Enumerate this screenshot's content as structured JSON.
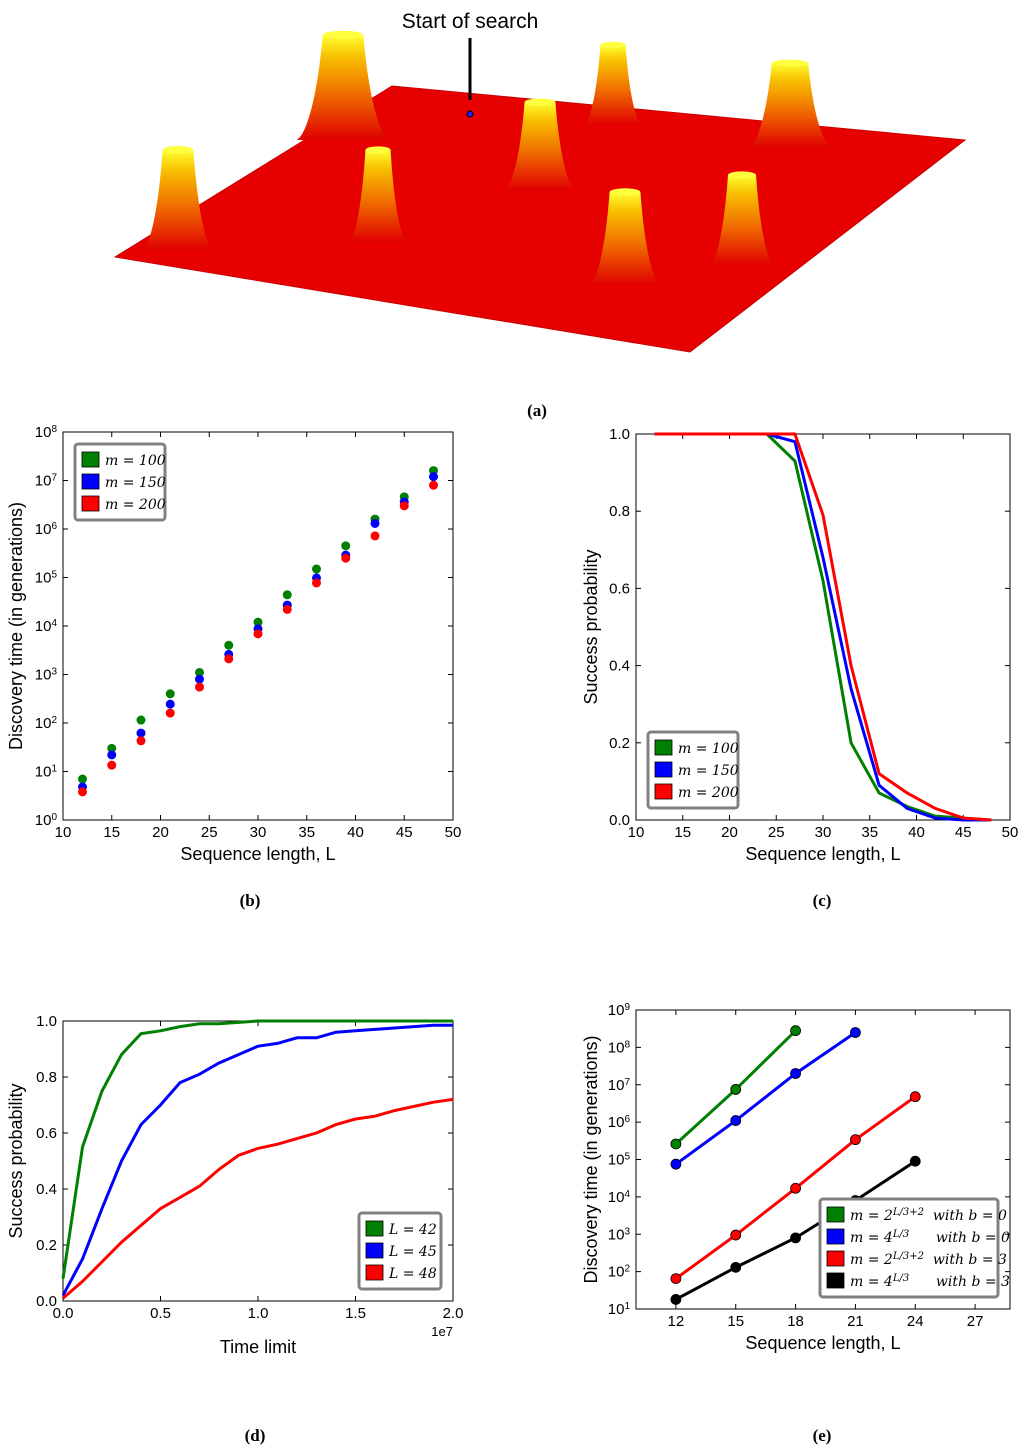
{
  "landscape": {
    "annotation": "Start of search",
    "panel_label": "(a)"
  },
  "chart_data": [
    {
      "type": "scatter",
      "panel_label": "(b)",
      "xlabel": "Sequence length, L",
      "ylabel": "Discovery time (in generations)",
      "log_y": true,
      "legend": "upper left",
      "x": [
        12,
        15,
        18,
        21,
        24,
        27,
        30,
        33,
        36,
        39,
        42,
        45,
        48
      ],
      "xlim": [
        10,
        50
      ],
      "xticks": [
        10,
        15,
        20,
        25,
        30,
        35,
        40,
        45,
        50
      ],
      "ylim": [
        1,
        100000000
      ],
      "yticks": [
        {
          "value": 1,
          "label": "10^{0}"
        },
        {
          "value": 10,
          "label": "10^{1}"
        },
        {
          "value": 100,
          "label": "10^{2}"
        },
        {
          "value": 1000,
          "label": "10^{3}"
        },
        {
          "value": 10000,
          "label": "10^{4}"
        },
        {
          "value": 100000,
          "label": "10^{5}"
        },
        {
          "value": 1000000,
          "label": "10^{6}"
        },
        {
          "value": 10000000,
          "label": "10^{7}"
        },
        {
          "value": 100000000,
          "label": "10^{8}"
        }
      ],
      "series": [
        {
          "name": "m = 100",
          "color": "#008000",
          "values": [
            7,
            30,
            115,
            400,
            1100,
            4000,
            12000,
            44000,
            150000,
            450000,
            1600000,
            4600000,
            16000000
          ]
        },
        {
          "name": "m = 150",
          "color": "#0000ff",
          "values": [
            4.8,
            22,
            62,
            245,
            800,
            2600,
            8700,
            27000,
            98000,
            290000,
            1300000,
            3600000,
            12000000
          ]
        },
        {
          "name": "m = 200",
          "color": "#ff0000",
          "values": [
            3.8,
            13.5,
            43,
            160,
            550,
            2100,
            6900,
            22000,
            77000,
            250000,
            720000,
            3000000,
            8000000
          ]
        }
      ]
    },
    {
      "type": "line",
      "panel_label": "(c)",
      "xlabel": "Sequence length, L",
      "ylabel": "Success probability",
      "legend": "lower left",
      "x": [
        12,
        15,
        18,
        21,
        24,
        27,
        30,
        33,
        36,
        39,
        42,
        45,
        48
      ],
      "xlim": [
        10,
        50
      ],
      "xticks": [
        10,
        15,
        20,
        25,
        30,
        35,
        40,
        45,
        50
      ],
      "ylim": [
        0,
        1
      ],
      "yticks": [
        {
          "value": 0,
          "label": "0.0"
        },
        {
          "value": 0.2,
          "label": "0.2"
        },
        {
          "value": 0.4,
          "label": "0.4"
        },
        {
          "value": 0.6,
          "label": "0.6"
        },
        {
          "value": 0.8,
          "label": "0.8"
        },
        {
          "value": 1,
          "label": "1.0"
        }
      ],
      "series": [
        {
          "name": "m = 100",
          "color": "#008000",
          "values": [
            1,
            1,
            1,
            1,
            1,
            0.93,
            0.62,
            0.2,
            0.07,
            0.035,
            0.01,
            0.005,
            0
          ]
        },
        {
          "name": "m = 150",
          "color": "#0000ff",
          "values": [
            1,
            1,
            1,
            1,
            1,
            0.98,
            0.68,
            0.34,
            0.09,
            0.03,
            0.005,
            0,
            0
          ]
        },
        {
          "name": "m = 200",
          "color": "#ff0000",
          "values": [
            1,
            1,
            1,
            1,
            1,
            1,
            0.79,
            0.4,
            0.12,
            0.07,
            0.03,
            0.005,
            0
          ]
        }
      ]
    },
    {
      "type": "line",
      "panel_label": "(d)",
      "xlabel": "Time limit",
      "ylabel": "Success probability",
      "x_offset_label": "1e7",
      "legend": "lower right",
      "x": [
        0,
        0.1,
        0.2,
        0.3,
        0.4,
        0.5,
        0.6,
        0.7,
        0.8,
        0.9,
        1,
        1.1,
        1.2,
        1.3,
        1.4,
        1.5,
        1.6,
        1.7,
        1.8,
        1.9,
        2
      ],
      "xlim": [
        0,
        2
      ],
      "xticks": [
        {
          "value": 0,
          "label": "0.0"
        },
        {
          "value": 0.5,
          "label": "0.5"
        },
        {
          "value": 1,
          "label": "1.0"
        },
        {
          "value": 1.5,
          "label": "1.5"
        },
        {
          "value": 2,
          "label": "2.0"
        }
      ],
      "ylim": [
        0,
        1
      ],
      "yticks": [
        {
          "value": 0,
          "label": "0.0"
        },
        {
          "value": 0.2,
          "label": "0.2"
        },
        {
          "value": 0.4,
          "label": "0.4"
        },
        {
          "value": 0.6,
          "label": "0.6"
        },
        {
          "value": 0.8,
          "label": "0.8"
        },
        {
          "value": 1,
          "label": "1.0"
        }
      ],
      "series": [
        {
          "name": "L = 42",
          "color": "#008000",
          "values": [
            0.08,
            0.55,
            0.75,
            0.88,
            0.955,
            0.965,
            0.98,
            0.99,
            0.99,
            0.995,
            1,
            1,
            1,
            1,
            1,
            1,
            1,
            1,
            1,
            1,
            1
          ]
        },
        {
          "name": "L = 45",
          "color": "#0000ff",
          "values": [
            0.02,
            0.15,
            0.33,
            0.5,
            0.63,
            0.7,
            0.78,
            0.81,
            0.85,
            0.88,
            0.91,
            0.92,
            0.94,
            0.94,
            0.96,
            0.965,
            0.97,
            0.975,
            0.98,
            0.985,
            0.985
          ]
        },
        {
          "name": "L = 48",
          "color": "#ff0000",
          "values": [
            0.01,
            0.07,
            0.14,
            0.21,
            0.27,
            0.33,
            0.37,
            0.41,
            0.47,
            0.52,
            0.545,
            0.56,
            0.58,
            0.6,
            0.63,
            0.65,
            0.66,
            0.68,
            0.695,
            0.71,
            0.72
          ]
        }
      ]
    },
    {
      "type": "line",
      "panel_label": "(e)",
      "xlabel": "Sequence length, L",
      "ylabel": "Discovery time (in generations)",
      "log_y": true,
      "markers": true,
      "legend": "lower right",
      "xlim": [
        10,
        28.75
      ],
      "xticks": [
        12,
        15,
        18,
        21,
        24,
        27
      ],
      "ylim": [
        10,
        1000000000
      ],
      "yticks": [
        {
          "value": 10,
          "label": "10^{1}"
        },
        {
          "value": 100,
          "label": "10^{2}"
        },
        {
          "value": 1000,
          "label": "10^{3}"
        },
        {
          "value": 10000,
          "label": "10^{4}"
        },
        {
          "value": 100000,
          "label": "10^{5}"
        },
        {
          "value": 1000000,
          "label": "10^{6}"
        },
        {
          "value": 10000000,
          "label": "10^{7}"
        },
        {
          "value": 100000000,
          "label": "10^{8}"
        },
        {
          "value": 1000000000,
          "label": "10^{9}"
        }
      ],
      "series": [
        {
          "name": "m = 2^{L/3+2}  with b = 0",
          "color": "#008000",
          "x": [
            12,
            15,
            18
          ],
          "values": [
            260000,
            7500000,
            280000000
          ]
        },
        {
          "name": "m = 4^{L/3}      with b = 0",
          "color": "#0000ff",
          "x": [
            12,
            15,
            18,
            21
          ],
          "values": [
            75000,
            1100000,
            20000000,
            250000000
          ]
        },
        {
          "name": "m = 2^{L/3+2}  with b = 3",
          "color": "#ff0000",
          "x": [
            12,
            15,
            18,
            21,
            24
          ],
          "values": [
            65,
            950,
            17000,
            340000,
            4800000
          ]
        },
        {
          "name": "m = 4^{L/3}      with b = 3",
          "color": "#000000",
          "x": [
            12,
            15,
            18,
            21,
            24
          ],
          "values": [
            18,
            130,
            800,
            8000,
            90000
          ]
        }
      ]
    }
  ]
}
